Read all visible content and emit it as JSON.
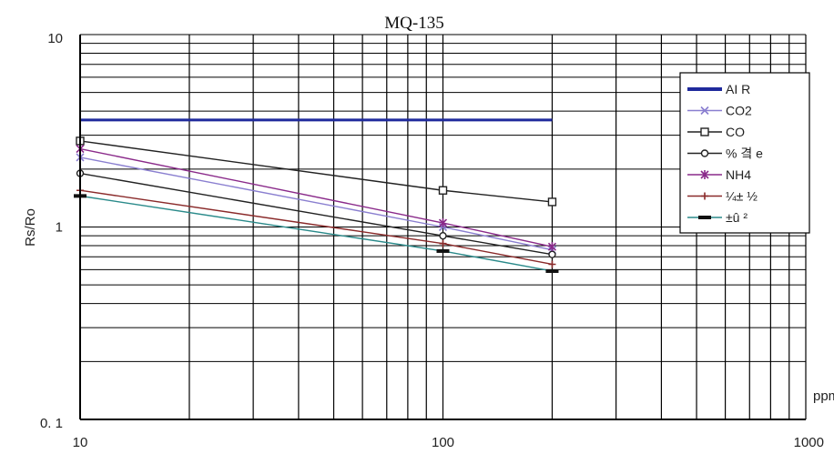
{
  "chart_data": {
    "type": "line",
    "title": "MQ-135",
    "ylabel": "Rs/Ro",
    "xlabel": "ppm",
    "x_scale": "log",
    "y_scale": "log",
    "xlim": [
      10,
      1000
    ],
    "ylim": [
      0.1,
      10
    ],
    "x_tick_labels": [
      {
        "value": 10,
        "label": "10"
      },
      {
        "value": 100,
        "label": "100"
      },
      {
        "value": 1000,
        "label": "1000"
      }
    ],
    "y_tick_labels": [
      {
        "value": 10,
        "label": "10"
      },
      {
        "value": 1,
        "label": "1"
      },
      {
        "value": 0.1,
        "label": "0. 1"
      }
    ],
    "grid": true,
    "legend_position": "right",
    "series": [
      {
        "name": "AI R",
        "color": "#1f2a9c",
        "marker": "none",
        "x": [
          10,
          200
        ],
        "y": [
          3.6,
          3.6
        ]
      },
      {
        "name": "CO2",
        "color": "#8a7fd0",
        "marker": "x",
        "x": [
          10,
          100,
          200
        ],
        "y": [
          2.3,
          1.0,
          0.76
        ]
      },
      {
        "name": "CO",
        "color": "#222222",
        "marker": "square",
        "x": [
          10,
          100,
          200
        ],
        "y": [
          2.8,
          1.55,
          1.35
        ]
      },
      {
        "name": "% 곀 e",
        "color": "#222222",
        "marker": "circle",
        "x": [
          10,
          100,
          200
        ],
        "y": [
          1.9,
          0.9,
          0.72
        ]
      },
      {
        "name": "NH4",
        "color": "#8a2a8a",
        "marker": "star",
        "x": [
          10,
          100,
          200
        ],
        "y": [
          2.55,
          1.05,
          0.79
        ]
      },
      {
        "name": "¼± ½",
        "color": "#8a2a2a",
        "marker": "plus",
        "x": [
          10,
          100,
          200
        ],
        "y": [
          1.55,
          0.82,
          0.64
        ]
      },
      {
        "name": "±û ²",
        "color": "#2a8a8a",
        "marker": "dash",
        "x": [
          10,
          100,
          200
        ],
        "y": [
          1.45,
          0.75,
          0.59
        ]
      }
    ]
  }
}
